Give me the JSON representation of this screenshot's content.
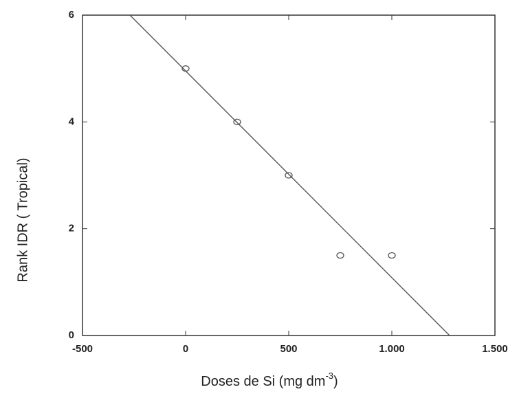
{
  "chart_data": {
    "type": "scatter",
    "xlabel": {
      "main": "Doses de Si (mg dm",
      "sup": "-3",
      "close": ")"
    },
    "ylabel": "Rank IDR ( Tropical)",
    "x": [
      0,
      250,
      500,
      750,
      1000
    ],
    "values": [
      5,
      4,
      3,
      1.5,
      1.5
    ],
    "fit_line": {
      "x": [
        -270,
        1280
      ],
      "y": [
        6,
        0
      ]
    },
    "color": "#555555",
    "xlim": [
      -500,
      1500
    ],
    "xticks": [
      -500,
      0,
      500,
      {
        "value": 1000,
        "label": "1.000"
      },
      {
        "value": 1500,
        "label": "1.500"
      }
    ],
    "ylim": [
      0,
      6
    ],
    "yticks": [
      0,
      2,
      4,
      6
    ]
  }
}
